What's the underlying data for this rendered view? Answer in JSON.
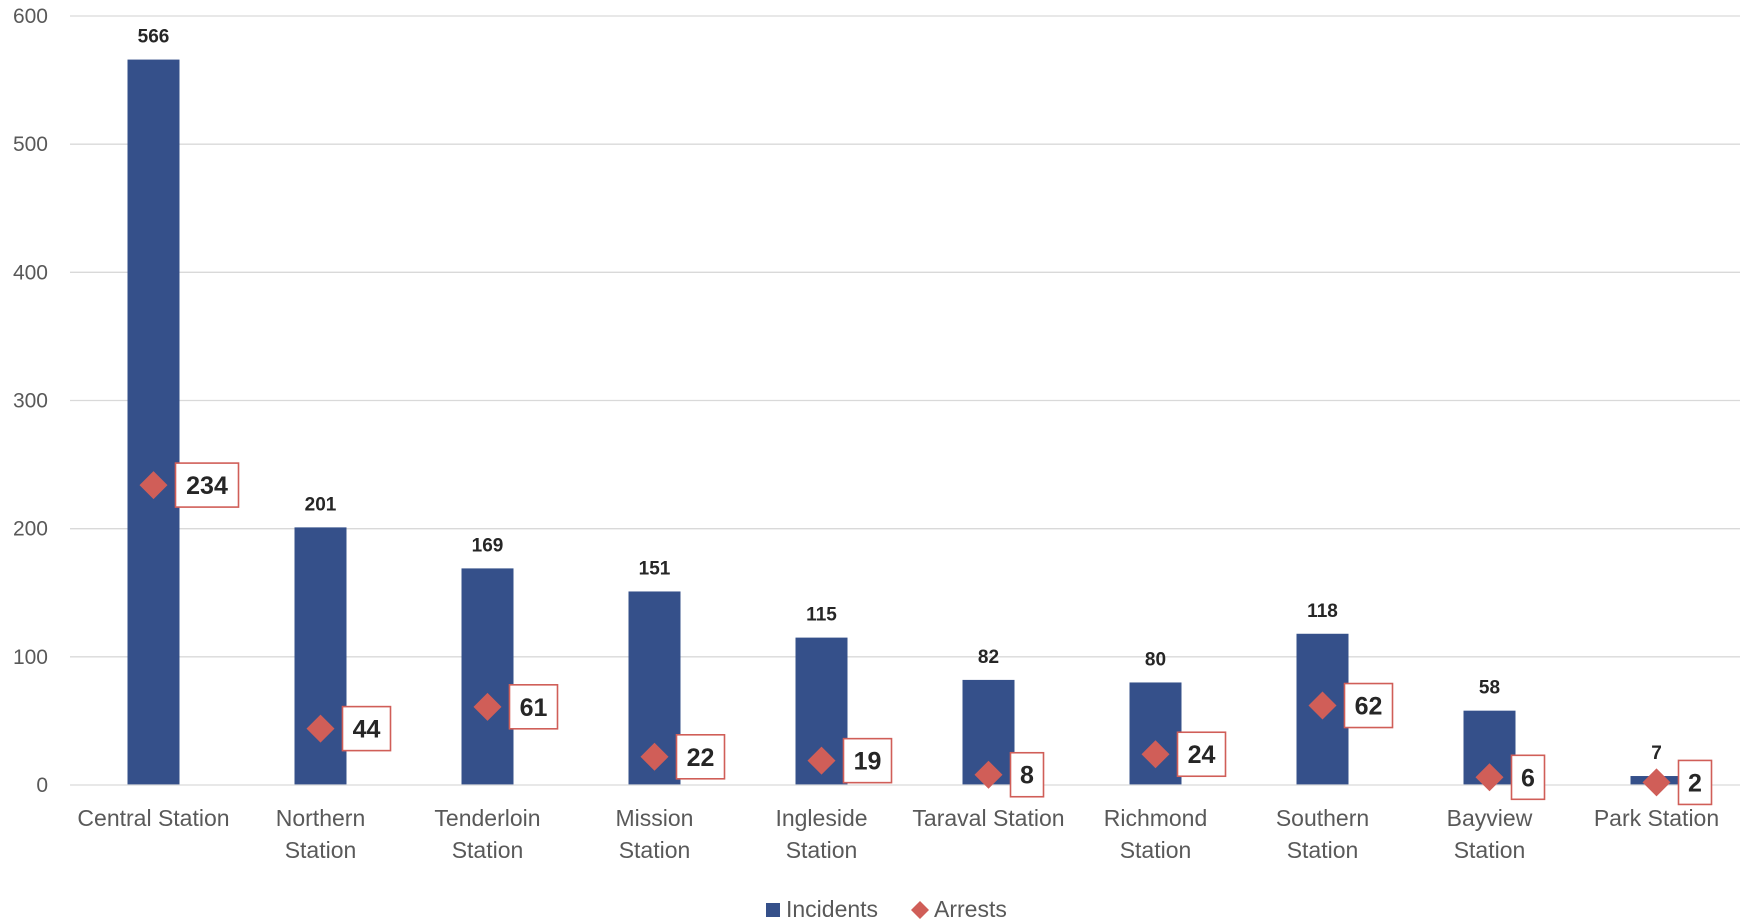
{
  "chart_data": {
    "type": "bar",
    "categories": [
      "Central Station",
      "Northern Station",
      "Tenderloin Station",
      "Mission Station",
      "Ingleside Station",
      "Taraval Station",
      "Richmond Station",
      "Southern Station",
      "Bayview Station",
      "Park Station"
    ],
    "category_lines": [
      [
        "Central Station"
      ],
      [
        "Northern",
        "Station"
      ],
      [
        "Tenderloin",
        "Station"
      ],
      [
        "Mission",
        "Station"
      ],
      [
        "Ingleside",
        "Station"
      ],
      [
        "Taraval Station"
      ],
      [
        "Richmond",
        "Station"
      ],
      [
        "Southern",
        "Station"
      ],
      [
        "Bayview",
        "Station"
      ],
      [
        "Park Station"
      ]
    ],
    "series": [
      {
        "name": "Incidents",
        "type": "bar",
        "color": "#35508A",
        "values": [
          566,
          201,
          169,
          151,
          115,
          82,
          80,
          118,
          58,
          7
        ]
      },
      {
        "name": "Arrests",
        "type": "scatter",
        "marker": "diamond",
        "color": "#D05E58",
        "values": [
          234,
          44,
          61,
          22,
          19,
          8,
          24,
          62,
          6,
          2
        ]
      }
    ],
    "ylim": [
      0,
      600
    ],
    "yticks": [
      0,
      100,
      200,
      300,
      400,
      500,
      600
    ],
    "grid": true,
    "legend": "bottom",
    "title": "",
    "xlabel": "",
    "ylabel": ""
  }
}
